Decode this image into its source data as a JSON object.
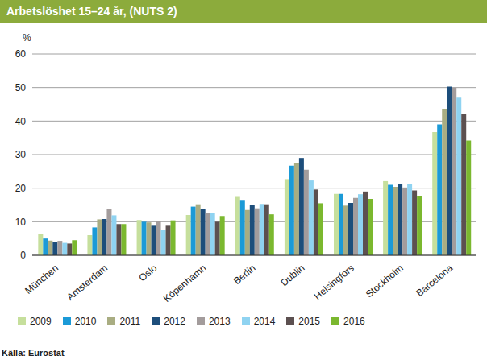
{
  "chart_data": {
    "type": "bar",
    "title": "Arbetslöshet 15–24 år, (NUTS 2)",
    "y_label": "%",
    "source": "Källa: Eurostat",
    "categories": [
      "München",
      "Amsterdam",
      "Oslo",
      "Köpenhamn",
      "Berlin",
      "Dublin",
      "Helsingfors",
      "Stockholm",
      "Barcelona"
    ],
    "series": [
      {
        "name": "2009",
        "color": "#c6df9c",
        "values": [
          6.4,
          6.0,
          10.5,
          12.0,
          17.4,
          22.7,
          18.3,
          22.1,
          36.7
        ]
      },
      {
        "name": "2010",
        "color": "#1b9ad7",
        "values": [
          5.0,
          8.3,
          10.0,
          14.5,
          16.5,
          26.7,
          18.3,
          21.0,
          39.0
        ]
      },
      {
        "name": "2011",
        "color": "#a9ad82",
        "values": [
          4.4,
          10.7,
          9.8,
          15.2,
          13.5,
          27.6,
          14.8,
          20.4,
          43.7
        ]
      },
      {
        "name": "2012",
        "color": "#1d4e7b",
        "values": [
          4.0,
          10.8,
          8.8,
          13.8,
          14.9,
          29.0,
          15.6,
          21.3,
          50.3
        ]
      },
      {
        "name": "2013",
        "color": "#a39c9c",
        "values": [
          4.3,
          13.9,
          10.2,
          12.5,
          14.0,
          25.5,
          17.1,
          20.2,
          50.0
        ]
      },
      {
        "name": "2014",
        "color": "#8fd3f1",
        "values": [
          3.7,
          11.9,
          7.5,
          12.6,
          15.3,
          22.3,
          18.2,
          21.3,
          47.0
        ]
      },
      {
        "name": "2015",
        "color": "#5c5050",
        "values": [
          3.5,
          9.3,
          8.8,
          10.0,
          15.2,
          19.6,
          19.0,
          19.3,
          42.1
        ]
      },
      {
        "name": "2016",
        "color": "#7bb82f",
        "values": [
          4.5,
          9.3,
          10.4,
          11.7,
          12.2,
          15.5,
          16.8,
          17.7,
          34.2
        ]
      }
    ],
    "ylim": [
      0,
      60
    ],
    "yticks": [
      0,
      10,
      20,
      30,
      40,
      50,
      60
    ],
    "grid": true,
    "legend": "bottom"
  }
}
